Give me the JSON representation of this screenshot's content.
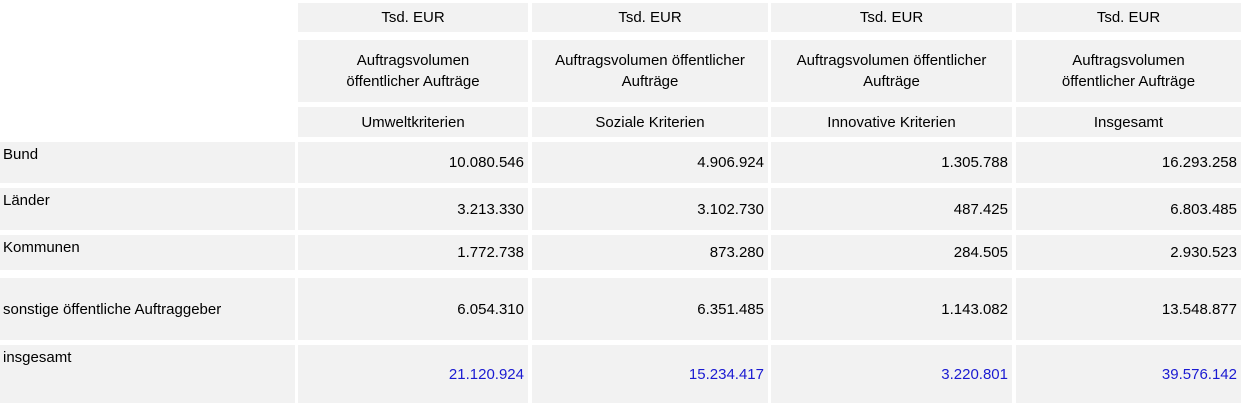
{
  "colors": {
    "cell_background": "#f2f2f2",
    "gap_background": "#ffffff",
    "text": "#000000",
    "total_value_text": "#1a1ad2"
  },
  "table": {
    "unit_row": [
      "Tsd. EUR",
      "Tsd. EUR",
      "Tsd. EUR",
      "Tsd. EUR"
    ],
    "group_row": [
      "Auftragsvolumen\nöffentlicher Aufträge",
      "Auftragsvolumen öffentlicher\nAufträge",
      "Auftragsvolumen öffentlicher\nAufträge",
      "Auftragsvolumen\nöffentlicher Aufträge"
    ],
    "criteria_row": [
      "Umweltkriterien",
      "Soziale Kriterien",
      "Innovative Kriterien",
      "Insgesamt"
    ],
    "rows": [
      {
        "label": "Bund",
        "values": [
          "10.080.546",
          "4.906.924",
          "1.305.788",
          "16.293.258"
        ]
      },
      {
        "label": "Länder",
        "values": [
          "3.213.330",
          "3.102.730",
          "487.425",
          "6.803.485"
        ]
      },
      {
        "label": "Kommunen",
        "values": [
          "1.772.738",
          "873.280",
          "284.505",
          "2.930.523"
        ]
      },
      {
        "label": "sonstige öffentliche Auftraggeber",
        "values": [
          "6.054.310",
          "6.351.485",
          "1.143.082",
          "13.548.877"
        ]
      },
      {
        "label": "insgesamt",
        "values": [
          "21.120.924",
          "15.234.417",
          "3.220.801",
          "39.576.142"
        ],
        "is_total": true
      }
    ]
  },
  "chart_data": {
    "type": "table",
    "title": "",
    "unit": "Tsd. EUR",
    "column_group_label": "Auftragsvolumen öffentlicher Aufträge",
    "columns": [
      "Umweltkriterien",
      "Soziale Kriterien",
      "Innovative Kriterien",
      "Insgesamt"
    ],
    "row_labels": [
      "Bund",
      "Länder",
      "Kommunen",
      "sonstige öffentliche Auftraggeber",
      "insgesamt"
    ],
    "values": [
      [
        10080546,
        4906924,
        1305788,
        16293258
      ],
      [
        3213330,
        3102730,
        487425,
        6803485
      ],
      [
        1772738,
        873280,
        284505,
        2930523
      ],
      [
        6054310,
        6351485,
        1143082,
        13548877
      ],
      [
        21120924,
        15234417,
        3220801,
        39576142
      ]
    ]
  }
}
